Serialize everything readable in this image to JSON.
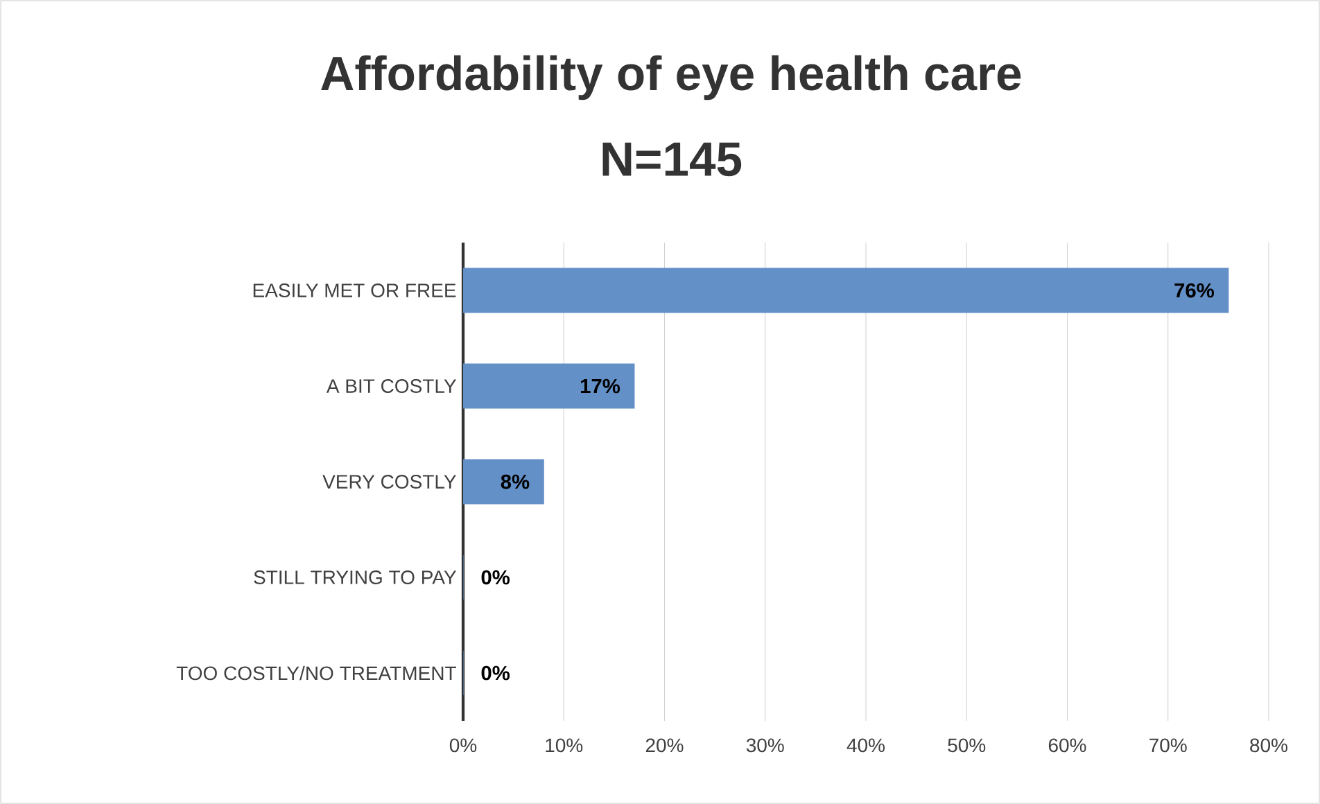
{
  "chart_data": {
    "type": "bar",
    "orientation": "horizontal",
    "title": "Affordability of eye health care",
    "subtitle": "N=145",
    "categories": [
      "EASILY MET OR FREE",
      "A BIT COSTLY",
      "VERY COSTLY",
      "STILL TRYING TO PAY",
      "TOO COSTLY/NO TREATMENT"
    ],
    "values": [
      76,
      17,
      8,
      0,
      0
    ],
    "value_labels": [
      "76%",
      "17%",
      "8%",
      "0%",
      "0%"
    ],
    "color": "#6490c8",
    "xlim": [
      0,
      80
    ],
    "xticks": [
      {
        "value": 0,
        "label": "0%"
      },
      {
        "value": 10,
        "label": "10%"
      },
      {
        "value": 20,
        "label": "20%"
      },
      {
        "value": 30,
        "label": "30%"
      },
      {
        "value": 40,
        "label": "40%"
      },
      {
        "value": 50,
        "label": "50%"
      },
      {
        "value": 60,
        "label": "60%"
      },
      {
        "value": 70,
        "label": "70%"
      },
      {
        "value": 80,
        "label": "80%"
      }
    ],
    "grid": "x"
  }
}
